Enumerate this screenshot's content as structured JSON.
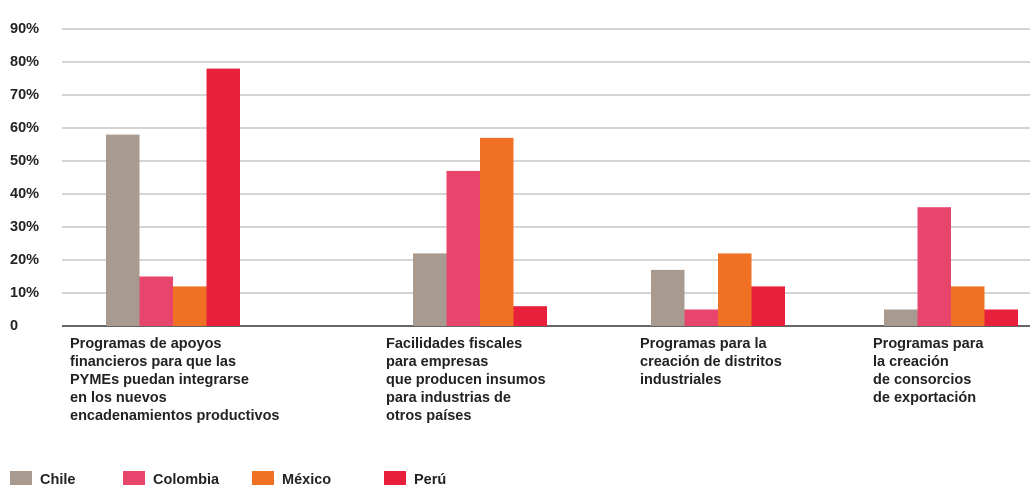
{
  "chart_data": {
    "type": "bar",
    "categories": [
      [
        "Programas de apoyos",
        "financieros para que las",
        "PYMEs puedan integrarse",
        "en los nuevos",
        "encadenamientos productivos"
      ],
      [
        "Facilidades fiscales",
        "para empresas",
        "que producen insumos",
        "para industrias de",
        "otros países"
      ],
      [
        "Programas para la",
        "creación de distritos",
        "industriales"
      ],
      [
        "Programas para",
        "la creación",
        "de consorcios",
        " de exportación"
      ]
    ],
    "series": [
      {
        "name": "Chile",
        "color": "#a89a8e",
        "values": [
          58,
          22,
          17,
          5
        ]
      },
      {
        "name": "Colombia",
        "color": "#e8456c",
        "values": [
          15,
          47,
          5,
          36
        ]
      },
      {
        "name": "México",
        "color": "#f07124",
        "values": [
          12,
          57,
          22,
          12
        ]
      },
      {
        "name": "Perú",
        "color": "#e8203c",
        "values": [
          78,
          6,
          12,
          5
        ]
      }
    ],
    "ylim": [
      0,
      90
    ],
    "yticks": [
      0,
      {
        "value": 10,
        "label": "10%"
      },
      {
        "value": 20,
        "label": "20%"
      },
      {
        "value": 30,
        "label": "30%"
      },
      {
        "value": 40,
        "label": "40%"
      },
      {
        "value": 50,
        "label": "50%"
      },
      {
        "value": 60,
        "label": "60%"
      },
      {
        "value": 70,
        "label": "70%"
      },
      {
        "value": 80,
        "label": "80%"
      },
      {
        "value": 90,
        "label": "90%"
      }
    ],
    "grid": true,
    "legend": "bottom"
  }
}
